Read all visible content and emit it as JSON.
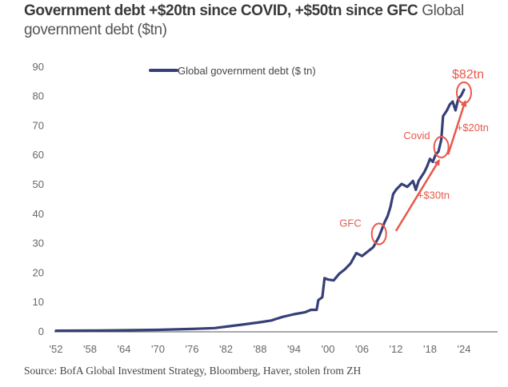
{
  "title": {
    "bold": "Government debt +$20tn since COVID, +$50tn since GFC",
    "light": "Global government debt ($tn)"
  },
  "source": "Source: BofA Global Investment Strategy, Bloomberg, Haver, stolen from ZH",
  "colors": {
    "series": "#363f78",
    "annotation": "#e8584a",
    "axis": "#555555"
  },
  "chart_data": {
    "type": "line",
    "title": "Government debt +$20tn since COVID, +$50tn since GFC Global government debt ($tn)",
    "xlabel": "",
    "ylabel": "",
    "xlim": [
      1952,
      2029
    ],
    "ylim": [
      0,
      90
    ],
    "grid": false,
    "legend_position": "top-center",
    "yticks": [
      0,
      10,
      20,
      30,
      40,
      50,
      60,
      70,
      80,
      90
    ],
    "ytick_labels": [
      "0",
      "10",
      "20",
      "30",
      "40",
      "50",
      "60",
      "70",
      "80",
      "90"
    ],
    "xticks": [
      1952,
      1958,
      1964,
      1970,
      1976,
      1982,
      1988,
      1994,
      2000,
      2006,
      2012,
      2018,
      2024
    ],
    "xtick_labels": [
      "'52",
      "'58",
      "'64",
      "'70",
      "'76",
      "'82",
      "'88",
      "'94",
      "'00",
      "'06",
      "'12",
      "'18",
      "'24"
    ],
    "series": [
      {
        "name": "Global government debt ($ tn)",
        "x": [
          1952,
          1960,
          1970,
          1976,
          1980,
          1982,
          1985,
          1988,
          1990,
          1991,
          1992,
          1994,
          1996,
          1997,
          1998,
          1998.3,
          1999,
          1999.4,
          2000,
          2001,
          2002,
          2003,
          2004,
          2005,
          2006,
          2007,
          2008,
          2009,
          2010,
          2010.5,
          2011,
          2011.5,
          2012,
          2013,
          2014,
          2015,
          2015.5,
          2016,
          2017,
          2017.5,
          2018,
          2018.5,
          2019,
          2019.5,
          2020,
          2020.3,
          2021,
          2021.5,
          2022,
          2022.5,
          2023,
          2023.5,
          2024
        ],
        "values": [
          0.1,
          0.2,
          0.4,
          0.7,
          1.0,
          1.5,
          2.2,
          3.0,
          3.6,
          4.2,
          4.8,
          5.7,
          6.4,
          7.2,
          7.2,
          10.5,
          11.5,
          18.0,
          17.5,
          17.2,
          19.5,
          21.0,
          23.0,
          26.5,
          25.5,
          27.0,
          28.5,
          32.0,
          37.0,
          39.0,
          42.0,
          46.5,
          48.0,
          50.0,
          49.0,
          51.0,
          48.0,
          51.0,
          54.0,
          56.0,
          58.5,
          57.5,
          60.0,
          61.0,
          65.0,
          73.0,
          75.0,
          77.0,
          78.0,
          75.0,
          79.0,
          80.0,
          82.0
        ]
      }
    ],
    "annotations": [
      {
        "label": "GFC",
        "x": 2009,
        "y": 33,
        "type": "circle"
      },
      {
        "label": "Covid",
        "x": 2020,
        "y": 62.5,
        "type": "circle"
      },
      {
        "label": "$82tn",
        "x": 2024,
        "y": 81,
        "type": "circle"
      },
      {
        "label": "+$30tn",
        "from": [
          2012,
          34
        ],
        "to": [
          2019.6,
          58
        ],
        "type": "arrow"
      },
      {
        "label": "+$20tn",
        "from": [
          2021.2,
          60
        ],
        "to": [
          2024.2,
          78
        ],
        "type": "arrow"
      }
    ]
  }
}
